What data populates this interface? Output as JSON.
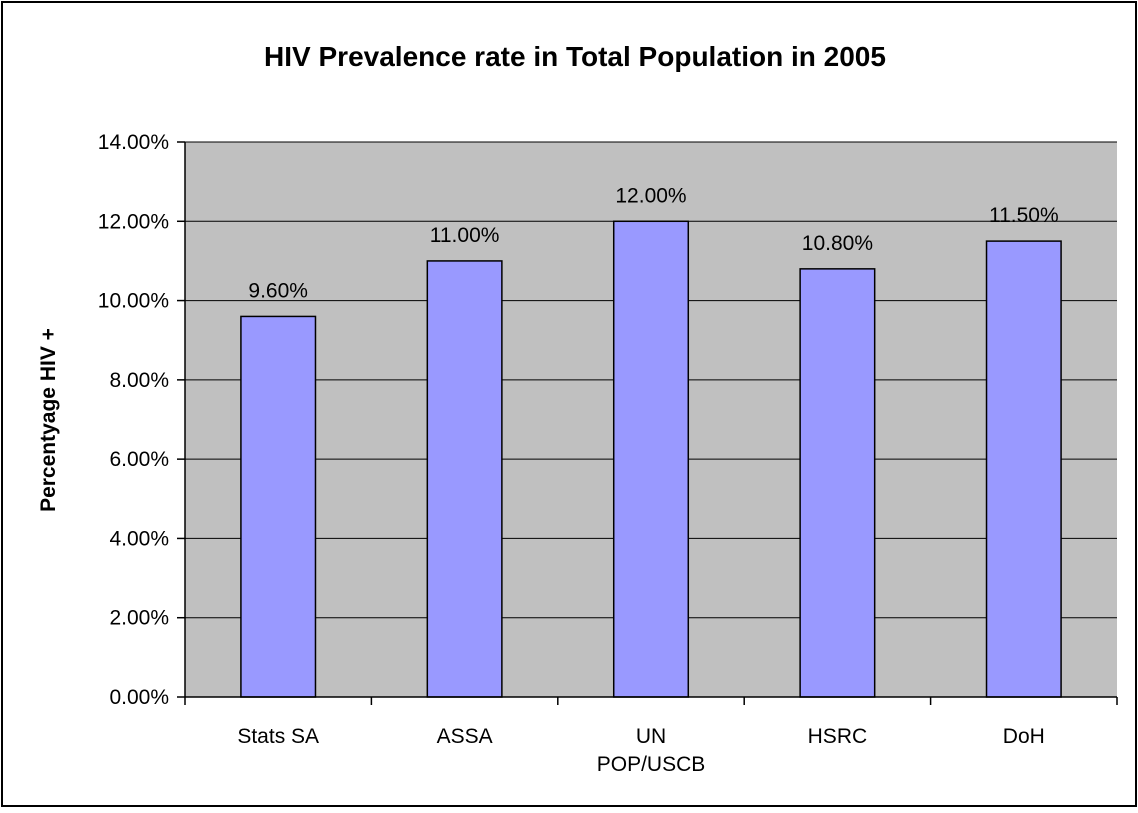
{
  "chart_data": {
    "type": "bar",
    "title": "HIV Prevalence rate in Total Population in 2005",
    "xlabel": "",
    "ylabel": "Percentyage HIV +",
    "categories": [
      [
        "Stats SA"
      ],
      [
        "ASSA"
      ],
      [
        "UN",
        "POP/USCB"
      ],
      [
        "HSRC"
      ],
      [
        "DoH"
      ]
    ],
    "values": [
      9.6,
      11.0,
      12.0,
      10.8,
      11.5
    ],
    "value_labels": [
      "9.60%",
      "11.00%",
      "12.00%",
      "10.80%",
      "11.50%"
    ],
    "ylim": [
      0,
      14
    ],
    "yticks": [
      0,
      2,
      4,
      6,
      8,
      10,
      12,
      14
    ],
    "ytick_labels": [
      "0.00%",
      "2.00%",
      "4.00%",
      "6.00%",
      "8.00%",
      "10.00%",
      "12.00%",
      "14.00%"
    ],
    "grid": true,
    "legend": "none",
    "colors": {
      "bar_fill": "#9999ff",
      "bar_stroke": "#000000",
      "plot_background": "#c0c0c0",
      "gridline": "#000000"
    }
  }
}
